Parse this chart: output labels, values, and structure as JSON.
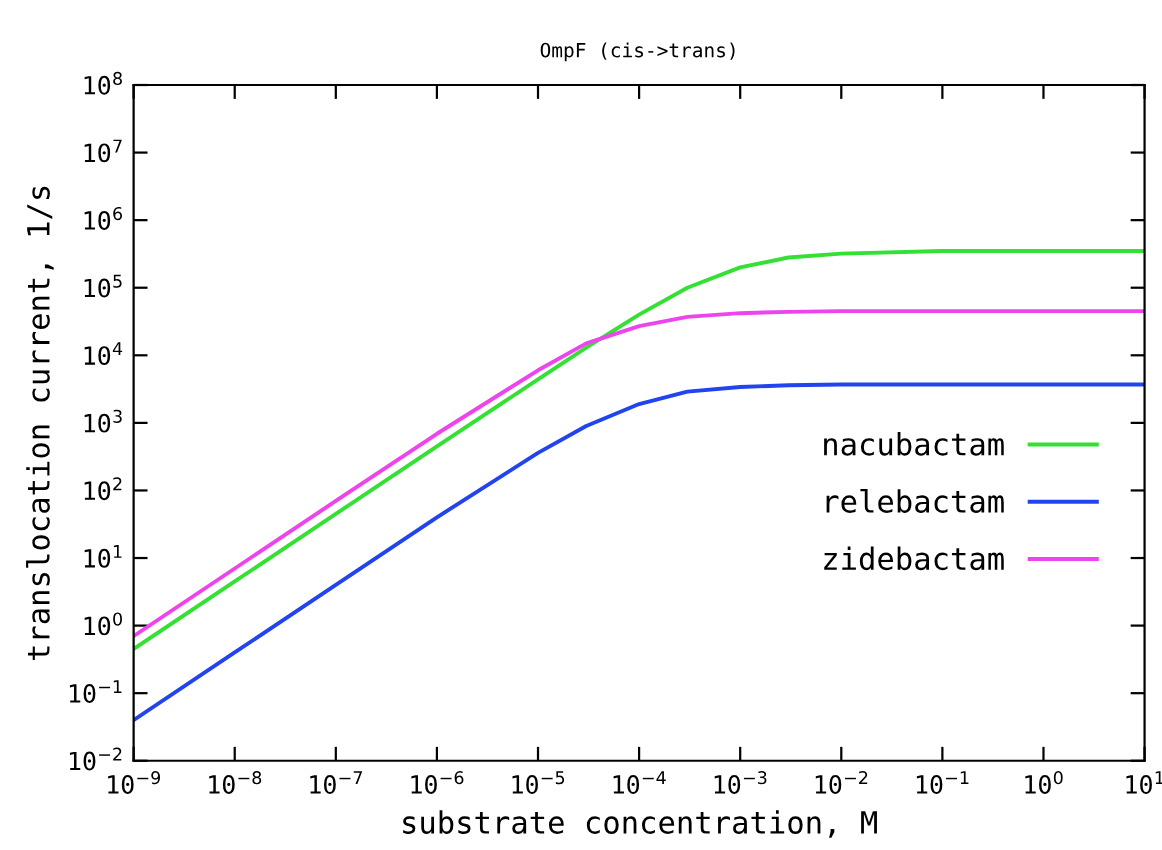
{
  "chart_data": {
    "type": "line",
    "title": "OmpF (cis->trans)",
    "xlabel": "substrate concentration, M",
    "ylabel": "translocation current, 1/s",
    "log": "xy",
    "x": [
      1e-09,
      1e-08,
      1e-07,
      1e-06,
      1e-05,
      3e-05,
      0.0001,
      0.0003,
      0.001,
      0.003,
      0.01,
      0.1,
      1,
      10
    ],
    "series": [
      {
        "name": "nacubactam",
        "color": "#33e033",
        "values": [
          0.45,
          4.5,
          45,
          450,
          4400,
          13000,
          40000,
          100000,
          200000,
          280000,
          320000,
          350000,
          350000,
          350000
        ]
      },
      {
        "name": "relebactam",
        "color": "#2244ee",
        "values": [
          0.04,
          0.4,
          4,
          40,
          360,
          900,
          1900,
          2900,
          3400,
          3600,
          3700,
          3700,
          3700,
          3700
        ]
      },
      {
        "name": "zidebactam",
        "color": "#ee44ee",
        "values": [
          0.7,
          7,
          70,
          690,
          6000,
          15000,
          27000,
          37000,
          42000,
          44000,
          45000,
          45000,
          45000,
          45000
        ]
      }
    ],
    "xlim": [
      1e-09,
      10
    ],
    "ylim": [
      0.01,
      100000000.0
    ],
    "xticks": [
      {
        "value": 1e-09,
        "label": "10$^{−9}$"
      },
      {
        "value": 1e-08,
        "label": "10$^{−8}$"
      },
      {
        "value": 1e-07,
        "label": "10$^{−7}$"
      },
      {
        "value": 1e-06,
        "label": "10$^{−6}$"
      },
      {
        "value": 1e-05,
        "label": "10$^{−5}$"
      },
      {
        "value": 0.0001,
        "label": "10$^{−4}$"
      },
      {
        "value": 0.001,
        "label": "10$^{−3}$"
      },
      {
        "value": 0.01,
        "label": "10$^{−2}$"
      },
      {
        "value": 0.1,
        "label": "10$^{−1}$"
      },
      {
        "value": 1,
        "label": "10$^{0}$"
      },
      {
        "value": 10,
        "label": "10$^{1}$"
      }
    ],
    "yticks": [
      {
        "value": 0.01,
        "label": "10$^{−2}$"
      },
      {
        "value": 0.1,
        "label": "10$^{−1}$"
      },
      {
        "value": 1,
        "label": "10$^{0}$"
      },
      {
        "value": 10,
        "label": "10$^{1}$"
      },
      {
        "value": 100,
        "label": "10$^{2}$"
      },
      {
        "value": 1000,
        "label": "10$^{3}$"
      },
      {
        "value": 10000,
        "label": "10$^{4}$"
      },
      {
        "value": 100000,
        "label": "10$^{5}$"
      },
      {
        "value": 1000000,
        "label": "10$^{6}$"
      },
      {
        "value": 10000000,
        "label": "10$^{7}$"
      },
      {
        "value": 100000000,
        "label": "10$^{8}$"
      }
    ],
    "legend": "right",
    "grid": false
  }
}
